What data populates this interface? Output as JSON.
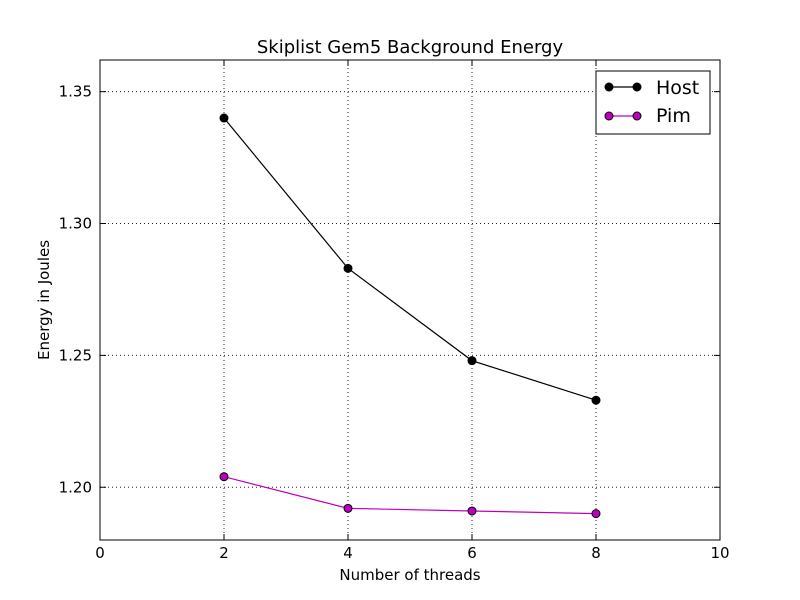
{
  "chart_data": {
    "type": "line",
    "title": "Skiplist Gem5 Background Energy",
    "xlabel": "Number of threads",
    "ylabel": "Energy in Joules",
    "xlim": [
      0,
      10
    ],
    "ylim": [
      1.18,
      1.362
    ],
    "xticks": [
      0,
      2,
      4,
      6,
      8,
      10
    ],
    "yticks": [
      1.2,
      1.25,
      1.3,
      1.35
    ],
    "ytick_labels": [
      "1.20",
      "1.25",
      "1.30",
      "1.35"
    ],
    "grid": true,
    "legend_position": "top-right",
    "series": [
      {
        "name": "Host",
        "color": "#000000",
        "x": [
          2,
          4,
          6,
          8
        ],
        "values": [
          1.34,
          1.283,
          1.248,
          1.233
        ]
      },
      {
        "name": "Pim",
        "color": "#bf00bf",
        "x": [
          2,
          4,
          6,
          8
        ],
        "values": [
          1.204,
          1.192,
          1.191,
          1.19
        ]
      }
    ]
  }
}
